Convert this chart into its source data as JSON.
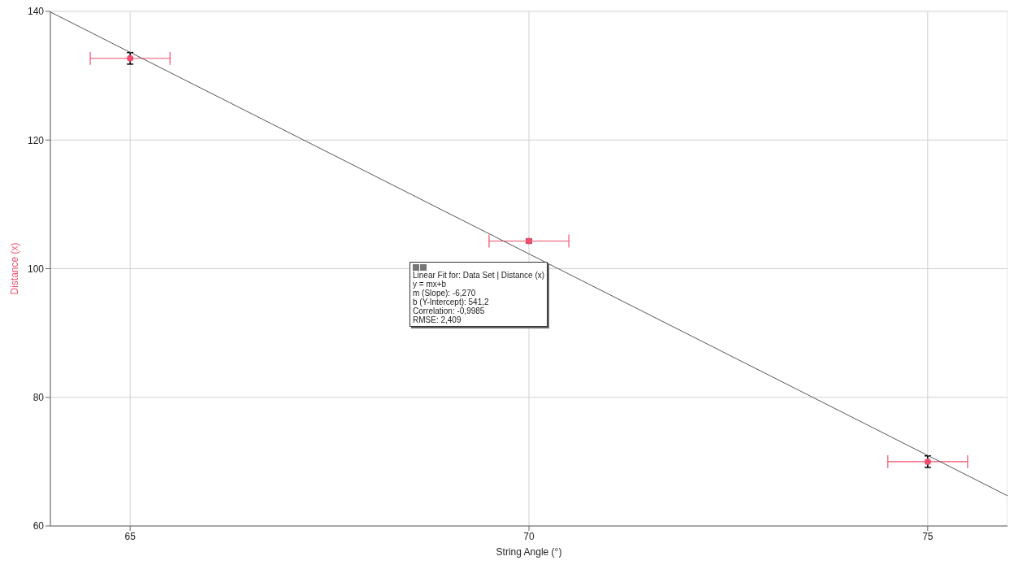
{
  "chart_data": {
    "type": "scatter",
    "xlabel": "String Angle (°)",
    "ylabel": "Distance (x)",
    "xlim": [
      64,
      76
    ],
    "xticks": [
      65,
      70,
      75
    ],
    "ylim": [
      60,
      140
    ],
    "yticks": [
      60,
      80,
      100,
      120,
      140
    ],
    "grid": true,
    "marker": "circle",
    "series": [
      {
        "color": "#f0506e",
        "x": [
          65,
          70,
          75
        ],
        "values": [
          132.7,
          104.3,
          70.0
        ],
        "errors": [
          0.9,
          0.3,
          0.9
        ],
        "xerrors": [
          0.5,
          0.5,
          0.5
        ]
      },
      {
        "type": "line",
        "marker": "none",
        "color": "#555555",
        "x": [
          64,
          76
        ],
        "values": [
          139.9,
          64.7
        ]
      }
    ],
    "annotations": [
      "Linear Fit for: Data Set | Distance (x)",
      "y = mx+b",
      "m (Slope): -6,270",
      "b (Y-Intercept): 541,2",
      "Correlation: -0,9985",
      "RMSE: 2,409"
    ]
  }
}
